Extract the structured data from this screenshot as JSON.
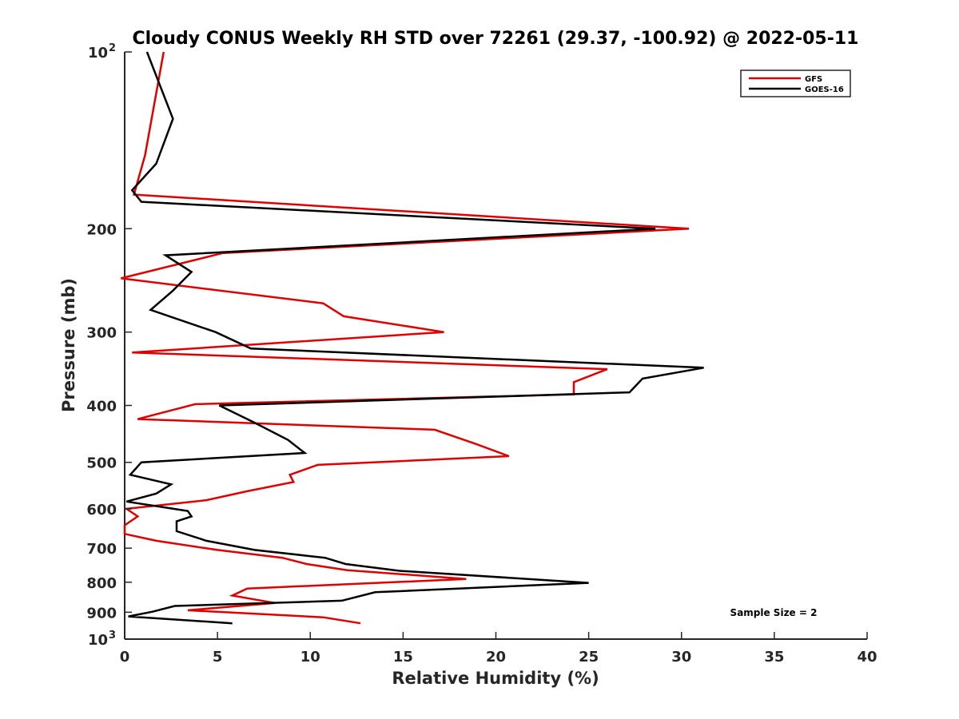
{
  "chart_data": {
    "type": "line",
    "title": "Cloudy CONUS Weekly RH STD over 72261 (29.37, -100.92) @ 2022-05-11",
    "xlabel": "Relative Humidity (%)",
    "ylabel": "Pressure (mb)",
    "xlim": [
      0,
      40
    ],
    "ylim": [
      100,
      1000
    ],
    "yscale": "log",
    "yreversed": true,
    "grid": false,
    "legend_position": "top-right",
    "x_ticks": [
      "0",
      "5",
      "10",
      "15",
      "20",
      "25",
      "30",
      "35",
      "40"
    ],
    "y_ticks": [
      {
        "value": 100,
        "label": "10",
        "sup": "2"
      },
      {
        "value": 200,
        "label": "200",
        "sup": ""
      },
      {
        "value": 300,
        "label": "300",
        "sup": ""
      },
      {
        "value": 400,
        "label": "400",
        "sup": ""
      },
      {
        "value": 500,
        "label": "500",
        "sup": ""
      },
      {
        "value": 600,
        "label": "600",
        "sup": ""
      },
      {
        "value": 700,
        "label": "700",
        "sup": ""
      },
      {
        "value": 800,
        "label": "800",
        "sup": ""
      },
      {
        "value": 900,
        "label": "900",
        "sup": ""
      },
      {
        "value": 1000,
        "label": "10",
        "sup": "3"
      }
    ],
    "annotation": "Sample Size = 2",
    "series": [
      {
        "name": "GFS",
        "color": "#e00000",
        "points": [
          [
            2.1,
            100
          ],
          [
            1.1,
            150
          ],
          [
            0.5,
            175
          ],
          [
            30.4,
            200
          ],
          [
            5.3,
            220
          ],
          [
            -0.2,
            243
          ],
          [
            10.7,
            268
          ],
          [
            11.8,
            282
          ],
          [
            17.2,
            300
          ],
          [
            0.4,
            325
          ],
          [
            26.0,
            347
          ],
          [
            24.2,
            365
          ],
          [
            24.2,
            383
          ],
          [
            3.8,
            398
          ],
          [
            0.7,
            422
          ],
          [
            16.7,
            440
          ],
          [
            18.9,
            465
          ],
          [
            20.7,
            488
          ],
          [
            10.4,
            505
          ],
          [
            8.9,
            525
          ],
          [
            9.1,
            540
          ],
          [
            6.6,
            560
          ],
          [
            4.4,
            580
          ],
          [
            0.1,
            600
          ],
          [
            0.7,
            618
          ],
          [
            0.0,
            640
          ],
          [
            0.0,
            662
          ],
          [
            1.7,
            680
          ],
          [
            5.0,
            705
          ],
          [
            8.5,
            727
          ],
          [
            9.8,
            745
          ],
          [
            12.0,
            763
          ],
          [
            18.4,
            790
          ],
          [
            6.6,
            820
          ],
          [
            5.8,
            843
          ],
          [
            8.1,
            868
          ],
          [
            3.4,
            893
          ],
          [
            10.7,
            918
          ],
          [
            12.7,
            940
          ]
        ]
      },
      {
        "name": "GOES-16",
        "color": "#000000",
        "points": [
          [
            1.2,
            100
          ],
          [
            2.6,
            130
          ],
          [
            1.7,
            155
          ],
          [
            0.4,
            172
          ],
          [
            0.9,
            180
          ],
          [
            28.6,
            200
          ],
          [
            2.2,
            222
          ],
          [
            3.6,
            237
          ],
          [
            2.6,
            255
          ],
          [
            1.4,
            275
          ],
          [
            4.9,
            300
          ],
          [
            6.8,
            320
          ],
          [
            31.2,
            345
          ],
          [
            27.9,
            360
          ],
          [
            27.2,
            380
          ],
          [
            5.1,
            400
          ],
          [
            7.0,
            428
          ],
          [
            8.8,
            458
          ],
          [
            9.7,
            482
          ],
          [
            0.9,
            500
          ],
          [
            0.3,
            525
          ],
          [
            2.5,
            545
          ],
          [
            1.7,
            565
          ],
          [
            0.1,
            583
          ],
          [
            3.4,
            605
          ],
          [
            3.6,
            618
          ],
          [
            2.8,
            630
          ],
          [
            2.8,
            655
          ],
          [
            4.4,
            680
          ],
          [
            7.0,
            705
          ],
          [
            10.8,
            727
          ],
          [
            11.9,
            745
          ],
          [
            14.8,
            765
          ],
          [
            25.0,
            802
          ],
          [
            13.5,
            832
          ],
          [
            11.7,
            860
          ],
          [
            2.7,
            878
          ],
          [
            1.5,
            898
          ],
          [
            0.2,
            915
          ],
          [
            5.8,
            940
          ]
        ]
      }
    ]
  }
}
